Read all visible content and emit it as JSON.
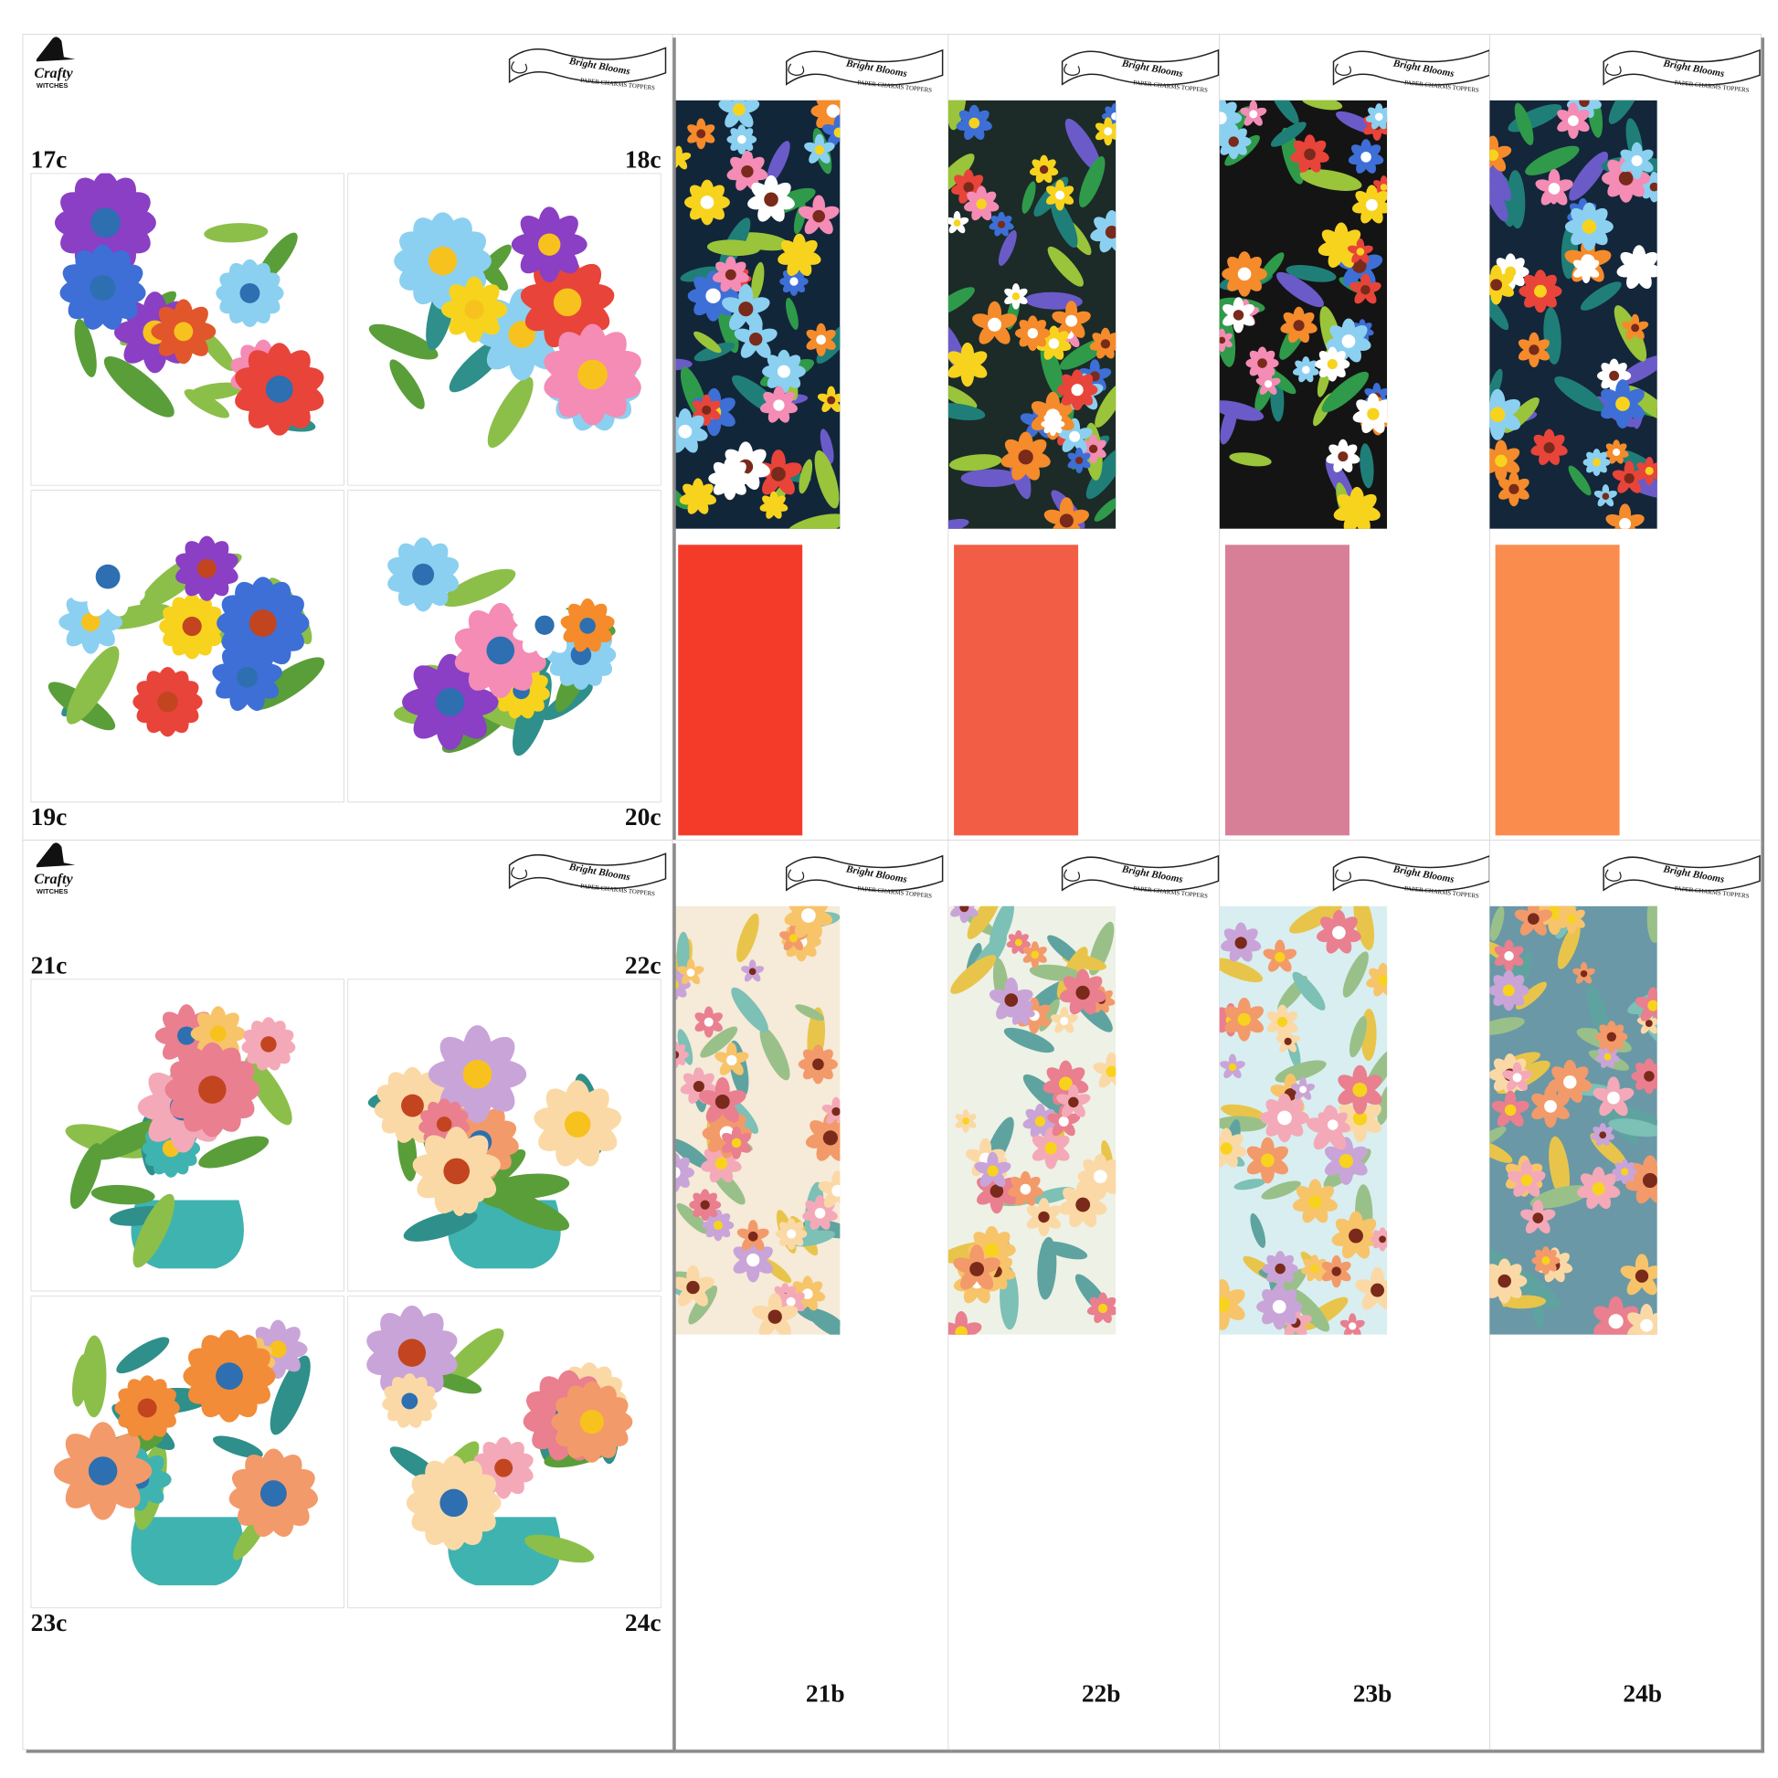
{
  "brand": {
    "logo": "Crafty",
    "logo_sub": "WITCHES",
    "banner_title": "Bright Blooms",
    "banner_subtitle": "PAPER CHARMS TOPPERS"
  },
  "sheets": [
    {
      "cards": [
        "17c",
        "18c",
        "19c",
        "20c"
      ]
    },
    {
      "cards": [
        "21c",
        "22c",
        "23c",
        "24c"
      ]
    }
  ],
  "strip_labels": [
    "21b",
    "22b",
    "23b",
    "24b"
  ]
}
